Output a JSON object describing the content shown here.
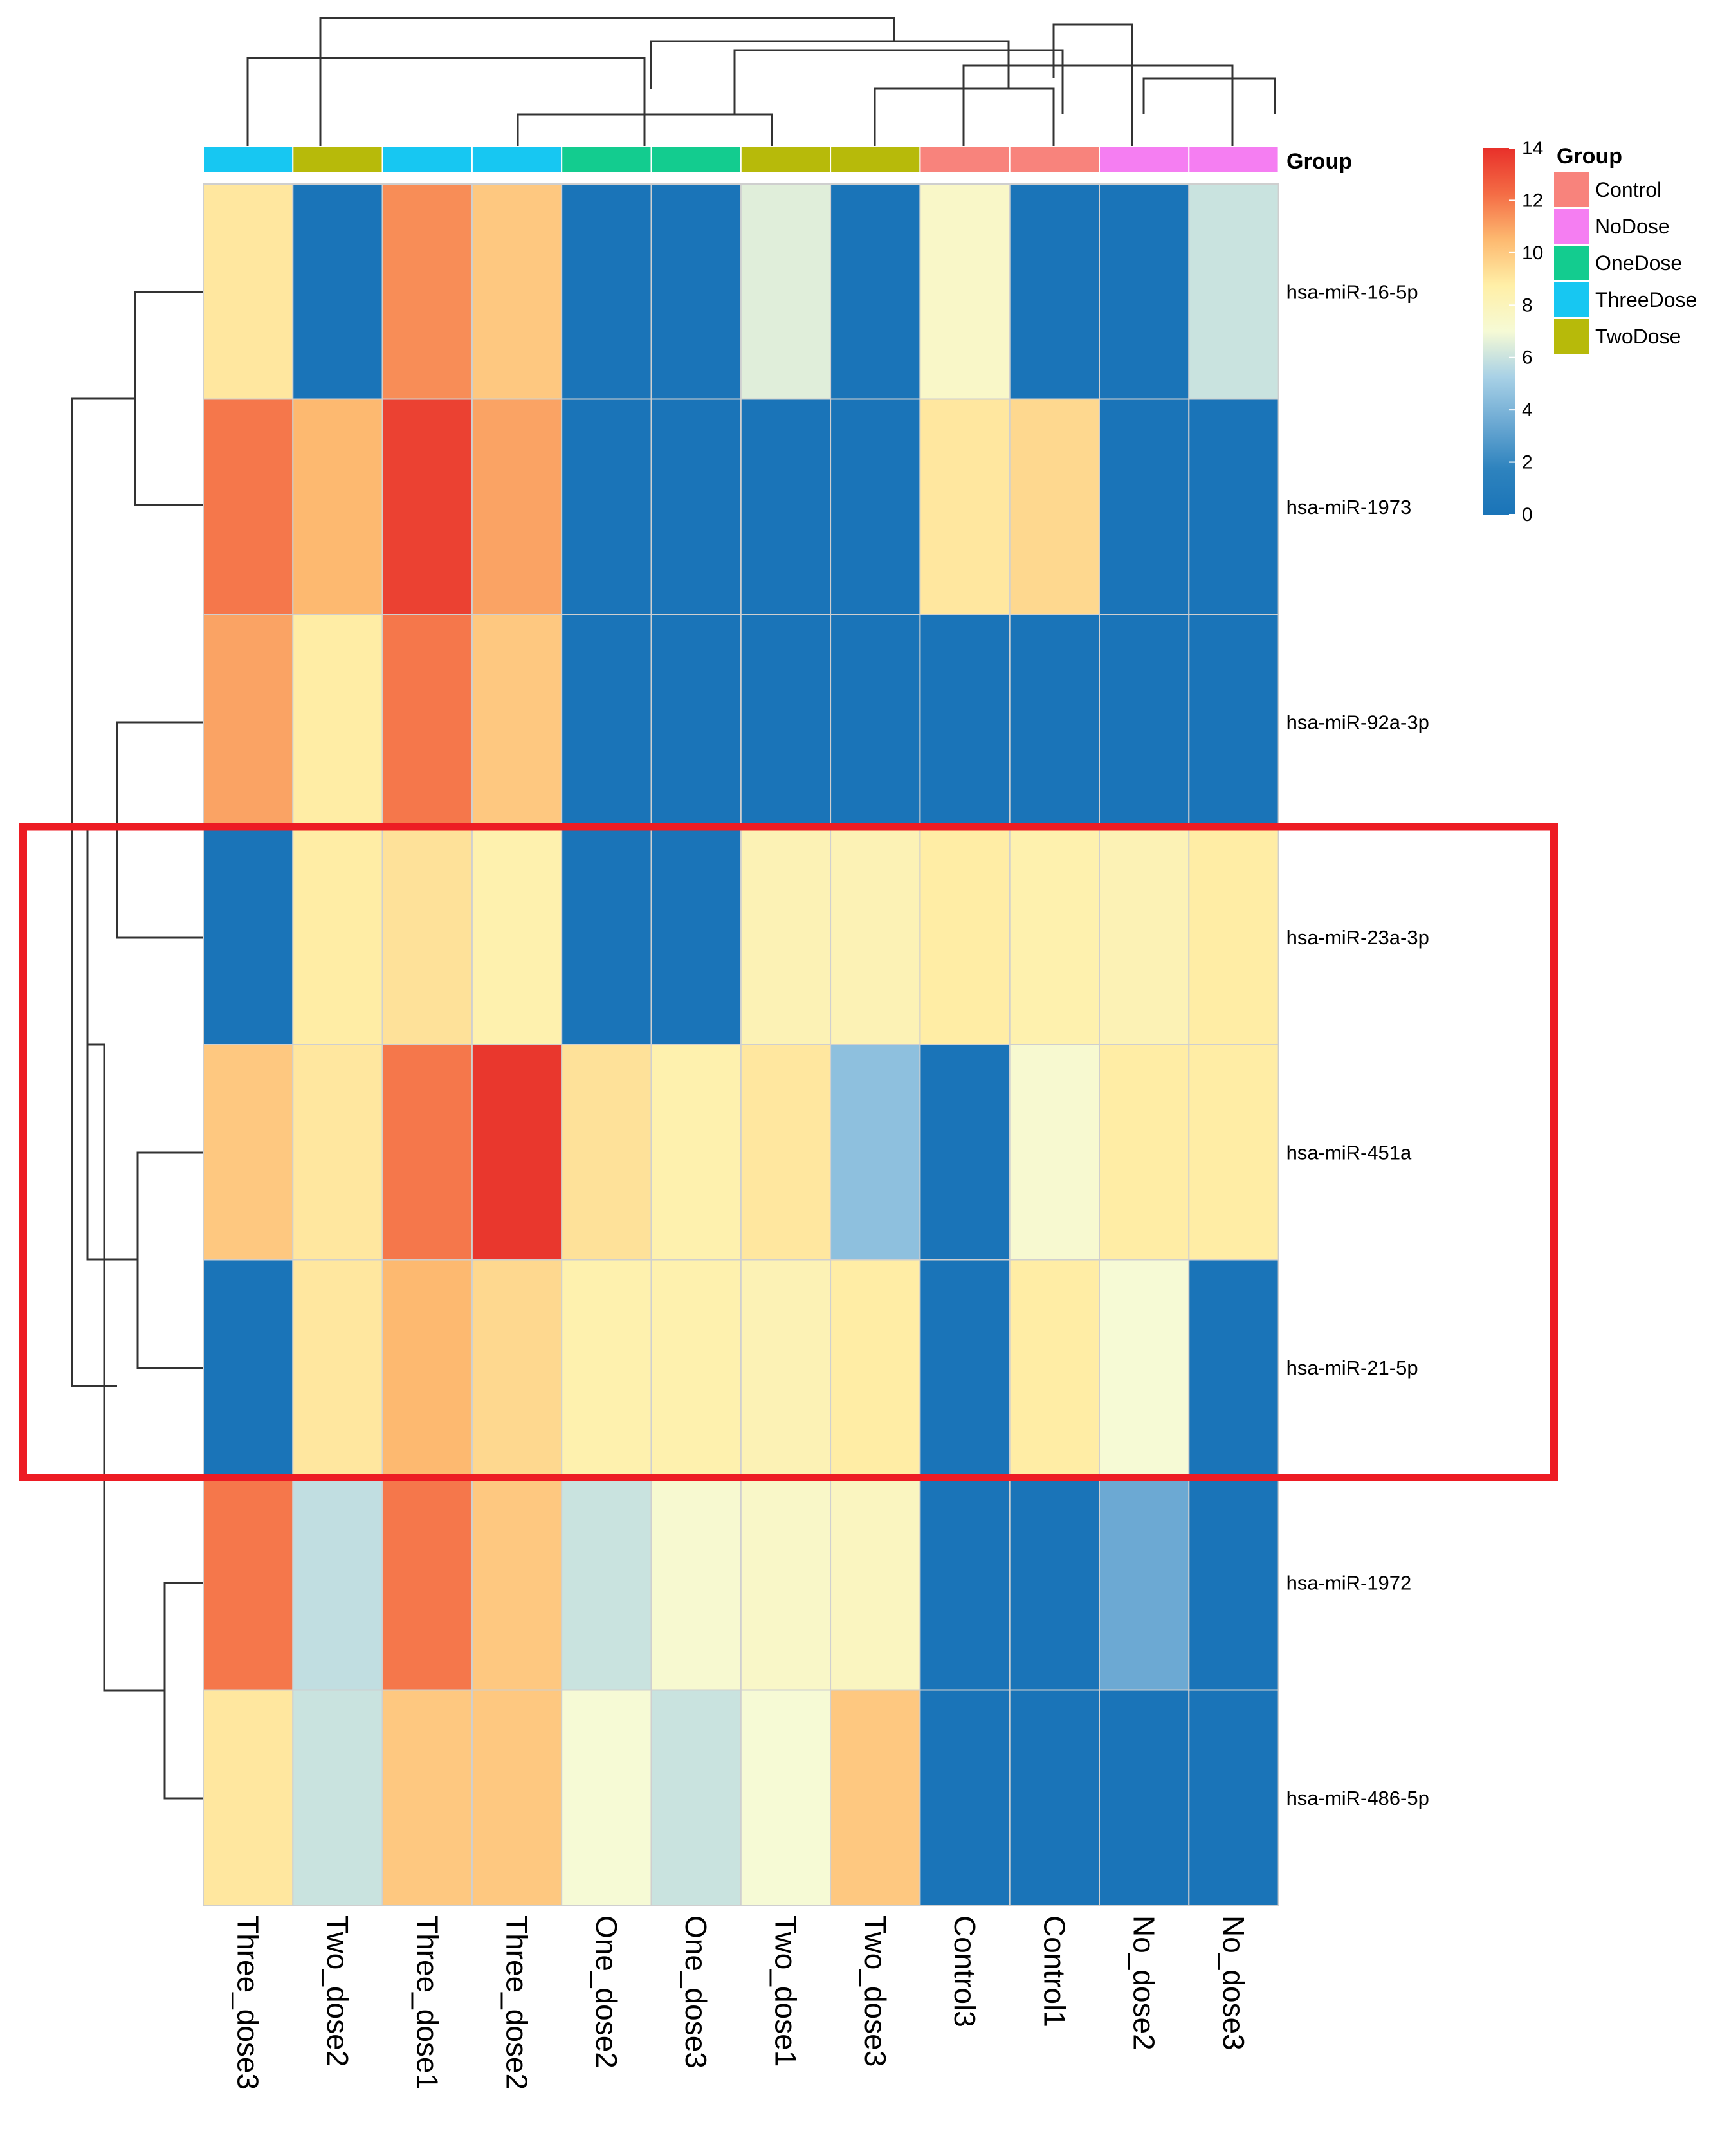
{
  "chart_data": {
    "type": "heatmap",
    "title": "",
    "columns": [
      "Three_dose3",
      "Two_dose2",
      "Three_dose1",
      "Three_dose2",
      "One_dose2",
      "One_dose3",
      "Two_dose1",
      "Two_dose3",
      "Control3",
      "Control1",
      "No_dose2",
      "No_dose3"
    ],
    "column_groups": [
      "ThreeDose",
      "TwoDose",
      "ThreeDose",
      "ThreeDose",
      "OneDose",
      "OneDose",
      "TwoDose",
      "TwoDose",
      "Control",
      "Control",
      "NoDose",
      "NoDose"
    ],
    "rows": [
      "hsa-miR-16-5p",
      "hsa-miR-1973",
      "hsa-miR-92a-3p",
      "hsa-miR-23a-3p",
      "hsa-miR-451a",
      "hsa-miR-21-5p",
      "hsa-miR-1972",
      "hsa-miR-486-5p"
    ],
    "values": [
      [
        9.0,
        0.0,
        11.5,
        10.0,
        0.0,
        0.0,
        6.5,
        0.0,
        7.5,
        0.0,
        0.0,
        6.0
      ],
      [
        12.0,
        10.5,
        13.5,
        11.0,
        0.0,
        0.0,
        0.0,
        0.0,
        9.0,
        9.5,
        0.0,
        0.0
      ],
      [
        11.0,
        8.8,
        12.0,
        10.0,
        0.0,
        0.0,
        0.0,
        0.0,
        0.0,
        0.0,
        0.0,
        0.0
      ],
      [
        0.0,
        8.8,
        9.2,
        8.5,
        0.0,
        0.0,
        8.2,
        8.2,
        8.8,
        8.5,
        8.2,
        8.8
      ],
      [
        10.0,
        9.0,
        12.0,
        13.8,
        9.2,
        8.5,
        9.0,
        4.5,
        0.0,
        7.2,
        8.8,
        8.8
      ],
      [
        0.0,
        9.0,
        10.5,
        9.5,
        8.5,
        8.5,
        8.2,
        8.8,
        0.0,
        8.8,
        7.0,
        0.0
      ],
      [
        12.0,
        5.8,
        12.0,
        10.0,
        6.0,
        7.2,
        7.5,
        7.8,
        0.0,
        0.0,
        3.5,
        0.0
      ],
      [
        9.0,
        6.0,
        10.0,
        10.0,
        7.0,
        6.0,
        7.0,
        10.0,
        0.0,
        0.0,
        0.0,
        0.0
      ]
    ],
    "color_scale": {
      "min": 0,
      "max": 14,
      "ticks": [
        0,
        2,
        4,
        6,
        8,
        10,
        12,
        14
      ],
      "tick_labels": [
        "0",
        "2",
        "4",
        "6",
        "8",
        "10",
        "12",
        "14"
      ],
      "colors": [
        "#1A74B8",
        "#2E83BE",
        "#6CA9D3",
        "#A8D1E6",
        "#F6FAD5",
        "#FFEFA7",
        "#FDB970",
        "#F46C45",
        "#E8302A"
      ]
    },
    "annotation_title": "Group",
    "legend": {
      "title": "Group",
      "entries": [
        {
          "label": "Control",
          "color": "#F8837C"
        },
        {
          "label": "NoDose",
          "color": "#F57EF2"
        },
        {
          "label": "OneDose",
          "color": "#13CC8F"
        },
        {
          "label": "ThreeDose",
          "color": "#17C7F2"
        },
        {
          "label": "TwoDose",
          "color": "#B7BA0A"
        }
      ]
    },
    "highlighted_rows": [
      "hsa-miR-23a-3p",
      "hsa-miR-451a",
      "hsa-miR-21-5p"
    ],
    "highlight_color": "#ED1C24"
  }
}
